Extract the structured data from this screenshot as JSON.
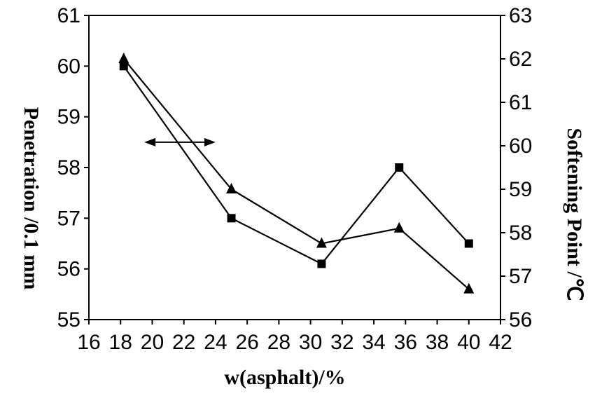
{
  "chart_data": {
    "type": "line",
    "xlabel": "w(asphalt)/%",
    "ylabel_left": "Penetration /0.1 mm",
    "ylabel_right": "Softening Point /℃",
    "xlim": [
      16,
      42
    ],
    "xticks": [
      16,
      18,
      20,
      22,
      24,
      26,
      28,
      30,
      32,
      34,
      36,
      38,
      40,
      42
    ],
    "ylim_left": [
      55,
      61
    ],
    "yticks_left": [
      55,
      56,
      57,
      58,
      59,
      60,
      61
    ],
    "ylim_right": [
      56,
      63
    ],
    "yticks_right": [
      56,
      57,
      58,
      59,
      60,
      61,
      62,
      63
    ],
    "grid": false,
    "series": [
      {
        "axis": "left",
        "marker": "square",
        "x": [
          18.2,
          25,
          30.7,
          35.6,
          40
        ],
        "values": [
          60.0,
          57.0,
          56.1,
          58.0,
          56.5
        ]
      },
      {
        "axis": "right",
        "marker": "triangle",
        "x": [
          18.2,
          25,
          30.7,
          35.6,
          40
        ],
        "values": [
          62.0,
          59.0,
          57.75,
          58.1,
          56.7
        ]
      }
    ],
    "annotations": [
      {
        "type": "double-arrow",
        "x_from": 19.5,
        "x_to": 24,
        "y_left": 58.5
      }
    ]
  }
}
